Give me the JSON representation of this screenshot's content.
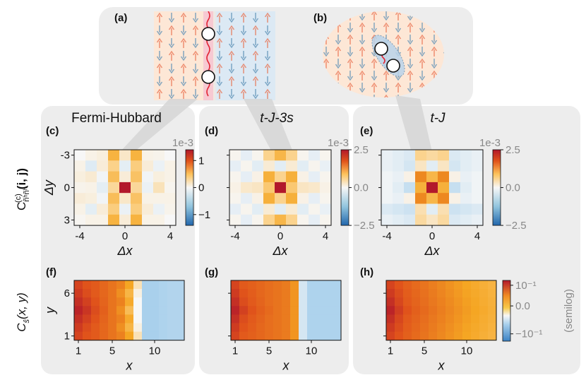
{
  "colors": {
    "panel_bg": "#ededed",
    "neg_strong": "#2166ac",
    "neg_light": "#a9d0ec",
    "zero": "#f7f7f7",
    "pos_light": "#fbd28a",
    "pos_mid": "#f5a623",
    "pos_strong": "#e0531b",
    "pos_max": "#b2182b",
    "spin_up": "#e8704f",
    "spin_down": "#5a8fb5"
  },
  "top": {
    "a_label": "(a)",
    "b_label": "(b)"
  },
  "columns": [
    {
      "title": "Fermi-Hubbard",
      "corr_label": "(c)",
      "corr_colorbar": {
        "scale_label": "1e-3",
        "ticks": [
          "1",
          "0",
          "−1"
        ],
        "tick_values": [
          1,
          0,
          -1
        ],
        "vmin": -1.4,
        "vmax": 1.4
      },
      "sdw_label": "(f)"
    },
    {
      "title": "t-J-3s",
      "corr_label": "(d)",
      "corr_colorbar": {
        "scale_label": "1e-3",
        "ticks": [
          "2.5",
          "0.0",
          "−2.5"
        ],
        "tick_values": [
          2.5,
          0,
          -2.5
        ],
        "vmin": -2.5,
        "vmax": 2.5
      },
      "sdw_label": "(g)"
    },
    {
      "title": "t-J",
      "corr_label": "(e)",
      "corr_colorbar": {
        "scale_label": "1e-3",
        "ticks": [
          "2.5",
          "0.0",
          "−2.5"
        ],
        "tick_values": [
          2.5,
          0,
          -2.5
        ],
        "vmin": -2.5,
        "vmax": 2.5
      },
      "sdw_label": "(h)"
    }
  ],
  "sdw_colorbar": {
    "ticks": [
      "10⁻¹",
      "0.0",
      "−10⁻¹"
    ],
    "tick_values": [
      0.1,
      0,
      -0.1
    ],
    "side_label": "(semilog)"
  },
  "chart_data": [
    {
      "type": "heatmap",
      "panel": "(c)",
      "title": "Fermi-Hubbard",
      "xlabel": "Δx",
      "ylabel": "Δy",
      "row_label": "C_{ñʰñʰ}^{(c)}(i, j)",
      "x_ticks": [
        "-4",
        "0",
        "4"
      ],
      "y_ticks": [
        "-3",
        "0",
        "3"
      ],
      "x_range": [
        -4,
        4
      ],
      "y_range": [
        -3,
        3
      ],
      "values": [
        [
          0.0,
          0.05,
          0.08,
          0.65,
          0.15,
          0.65,
          0.05,
          0.04,
          0.0
        ],
        [
          0.05,
          -0.2,
          0.1,
          0.35,
          -0.15,
          0.4,
          0.1,
          -0.1,
          0.05
        ],
        [
          0.08,
          0.12,
          -0.05,
          0.55,
          0.1,
          0.5,
          -0.05,
          0.08,
          0.05
        ],
        [
          0.04,
          0.05,
          -0.15,
          0.3,
          1.4,
          0.3,
          -0.1,
          0.2,
          0.03
        ],
        [
          0.1,
          0.08,
          -0.05,
          0.55,
          0.15,
          0.5,
          0.05,
          0.05,
          0.05
        ],
        [
          0.05,
          -0.15,
          0.1,
          0.4,
          -0.1,
          0.4,
          0.1,
          -0.1,
          0.04
        ],
        [
          0.02,
          0.05,
          0.05,
          0.65,
          0.1,
          0.65,
          0.05,
          0.05,
          0.0
        ]
      ]
    },
    {
      "type": "heatmap",
      "panel": "(d)",
      "title": "t-J-3s",
      "xlabel": "Δx",
      "ylabel": "Δy",
      "x_ticks": [
        "-4",
        "0",
        "4"
      ],
      "y_ticks": [
        "-3",
        "0",
        "3"
      ],
      "x_range": [
        -4,
        4
      ],
      "y_range": [
        -3,
        3
      ],
      "values": [
        [
          0.05,
          -0.25,
          0.05,
          0.6,
          1.1,
          0.6,
          0.05,
          -0.25,
          0.05
        ],
        [
          -0.25,
          0.05,
          -0.3,
          0.2,
          -0.3,
          0.2,
          -0.3,
          0.05,
          -0.2
        ],
        [
          0.05,
          -0.25,
          0.1,
          1.2,
          0.6,
          1.2,
          0.1,
          -0.25,
          0.05
        ],
        [
          0.1,
          0.25,
          0.3,
          0.8,
          2.5,
          0.8,
          0.3,
          0.25,
          0.1
        ],
        [
          0.05,
          -0.25,
          0.1,
          1.2,
          0.6,
          1.2,
          0.1,
          -0.25,
          0.05
        ],
        [
          -0.25,
          0.05,
          -0.3,
          0.2,
          -0.3,
          0.2,
          -0.3,
          0.05,
          -0.2
        ],
        [
          0.05,
          -0.25,
          0.05,
          0.6,
          1.1,
          0.6,
          0.05,
          -0.25,
          0.05
        ]
      ]
    },
    {
      "type": "heatmap",
      "panel": "(e)",
      "title": "t-J",
      "xlabel": "Δx",
      "ylabel": "Δy",
      "x_ticks": [
        "-4",
        "0",
        "4"
      ],
      "y_ticks": [
        "-3",
        "0",
        "3"
      ],
      "x_range": [
        -4,
        4
      ],
      "y_range": [
        -3,
        3
      ],
      "values": [
        [
          -0.2,
          -0.3,
          -0.4,
          0.6,
          0.5,
          0.6,
          -0.4,
          -0.3,
          -0.2
        ],
        [
          -0.2,
          -0.3,
          -0.5,
          0.3,
          -0.3,
          0.3,
          -0.5,
          -0.3,
          -0.2
        ],
        [
          -0.1,
          -0.2,
          0.1,
          1.6,
          1.1,
          1.6,
          0.1,
          -0.2,
          -0.1
        ],
        [
          -0.1,
          -0.3,
          -0.7,
          1.2,
          2.6,
          1.2,
          -0.7,
          -0.3,
          -0.1
        ],
        [
          -0.1,
          -0.2,
          0.1,
          1.6,
          1.1,
          1.6,
          0.1,
          -0.2,
          -0.1
        ],
        [
          -0.4,
          -0.5,
          -0.6,
          0.4,
          -0.3,
          0.4,
          -0.6,
          -0.5,
          -0.4
        ],
        [
          -0.2,
          -0.3,
          -0.4,
          0.5,
          0.3,
          0.5,
          -0.4,
          -0.3,
          -0.2
        ]
      ]
    },
    {
      "type": "heatmap",
      "panel": "(f)",
      "xlabel": "x",
      "ylabel": "y",
      "row_label": "C_{ŝ}(x, y)",
      "x_ticks": [
        "1",
        "5",
        "10"
      ],
      "y_ticks": [
        "6",
        "1"
      ],
      "x_range": [
        1,
        13
      ],
      "y_range": [
        1,
        7
      ],
      "values": [
        [
          0.85,
          0.8,
          0.78,
          0.74,
          0.7,
          0.66,
          0.55,
          0.15,
          -0.45,
          -0.45,
          -0.42,
          -0.4,
          -0.4
        ],
        [
          0.88,
          0.82,
          0.78,
          0.74,
          0.7,
          0.62,
          0.45,
          0.05,
          -0.45,
          -0.45,
          -0.42,
          -0.4,
          -0.4
        ],
        [
          0.92,
          0.86,
          0.8,
          0.75,
          0.7,
          0.66,
          0.52,
          0.0,
          -0.45,
          -0.45,
          -0.42,
          -0.4,
          -0.4
        ],
        [
          0.96,
          0.9,
          0.82,
          0.76,
          0.7,
          0.62,
          0.4,
          0.0,
          -0.45,
          -0.45,
          -0.42,
          -0.4,
          -0.4
        ],
        [
          0.92,
          0.86,
          0.8,
          0.75,
          0.7,
          0.66,
          0.52,
          0.0,
          -0.45,
          -0.45,
          -0.42,
          -0.4,
          -0.4
        ],
        [
          0.88,
          0.82,
          0.78,
          0.74,
          0.7,
          0.62,
          0.45,
          0.05,
          -0.45,
          -0.45,
          -0.42,
          -0.4,
          -0.4
        ],
        [
          0.85,
          0.8,
          0.78,
          0.74,
          0.7,
          0.66,
          0.55,
          0.15,
          -0.45,
          -0.45,
          -0.42,
          -0.4,
          -0.4
        ]
      ]
    },
    {
      "type": "heatmap",
      "panel": "(g)",
      "xlabel": "x",
      "ylabel": "y",
      "x_ticks": [
        "1",
        "5",
        "10"
      ],
      "y_ticks": [
        "6",
        "1"
      ],
      "x_range": [
        1,
        13
      ],
      "y_range": [
        1,
        7
      ],
      "values": [
        [
          0.85,
          0.78,
          0.76,
          0.74,
          0.72,
          0.7,
          0.68,
          0.6,
          -0.2,
          -0.42,
          -0.42,
          -0.42,
          -0.42
        ],
        [
          0.88,
          0.8,
          0.77,
          0.74,
          0.72,
          0.7,
          0.68,
          0.6,
          -0.2,
          -0.42,
          -0.42,
          -0.42,
          -0.42
        ],
        [
          0.92,
          0.82,
          0.78,
          0.75,
          0.72,
          0.7,
          0.68,
          0.6,
          -0.2,
          -0.42,
          -0.42,
          -0.42,
          -0.42
        ],
        [
          0.96,
          0.86,
          0.8,
          0.76,
          0.73,
          0.7,
          0.68,
          0.6,
          -0.2,
          -0.42,
          -0.42,
          -0.42,
          -0.42
        ],
        [
          0.92,
          0.82,
          0.78,
          0.75,
          0.72,
          0.7,
          0.68,
          0.6,
          -0.2,
          -0.42,
          -0.42,
          -0.42,
          -0.42
        ],
        [
          0.88,
          0.8,
          0.77,
          0.74,
          0.72,
          0.7,
          0.68,
          0.6,
          -0.2,
          -0.42,
          -0.42,
          -0.42,
          -0.42
        ],
        [
          0.85,
          0.78,
          0.76,
          0.74,
          0.72,
          0.7,
          0.68,
          0.6,
          -0.2,
          -0.42,
          -0.42,
          -0.42,
          -0.42
        ]
      ]
    },
    {
      "type": "heatmap",
      "panel": "(h)",
      "xlabel": "x",
      "ylabel": "y",
      "x_ticks": [
        "1",
        "5",
        "10"
      ],
      "y_ticks": [
        "6",
        "1"
      ],
      "x_range": [
        1,
        13
      ],
      "y_range": [
        1,
        7
      ],
      "values": [
        [
          0.85,
          0.8,
          0.76,
          0.73,
          0.7,
          0.67,
          0.64,
          0.61,
          0.58,
          0.55,
          0.52,
          0.49,
          0.46
        ],
        [
          0.88,
          0.82,
          0.77,
          0.74,
          0.71,
          0.68,
          0.65,
          0.62,
          0.59,
          0.56,
          0.53,
          0.5,
          0.47
        ],
        [
          0.92,
          0.84,
          0.78,
          0.75,
          0.72,
          0.69,
          0.66,
          0.63,
          0.6,
          0.57,
          0.54,
          0.51,
          0.48
        ],
        [
          0.96,
          0.87,
          0.8,
          0.76,
          0.73,
          0.7,
          0.67,
          0.64,
          0.61,
          0.58,
          0.55,
          0.52,
          0.49
        ],
        [
          0.92,
          0.84,
          0.78,
          0.75,
          0.72,
          0.69,
          0.66,
          0.63,
          0.6,
          0.57,
          0.54,
          0.51,
          0.48
        ],
        [
          0.88,
          0.82,
          0.77,
          0.74,
          0.71,
          0.68,
          0.65,
          0.62,
          0.59,
          0.56,
          0.53,
          0.5,
          0.47
        ],
        [
          0.85,
          0.8,
          0.76,
          0.73,
          0.7,
          0.67,
          0.64,
          0.61,
          0.58,
          0.55,
          0.52,
          0.49,
          0.46
        ]
      ]
    }
  ]
}
